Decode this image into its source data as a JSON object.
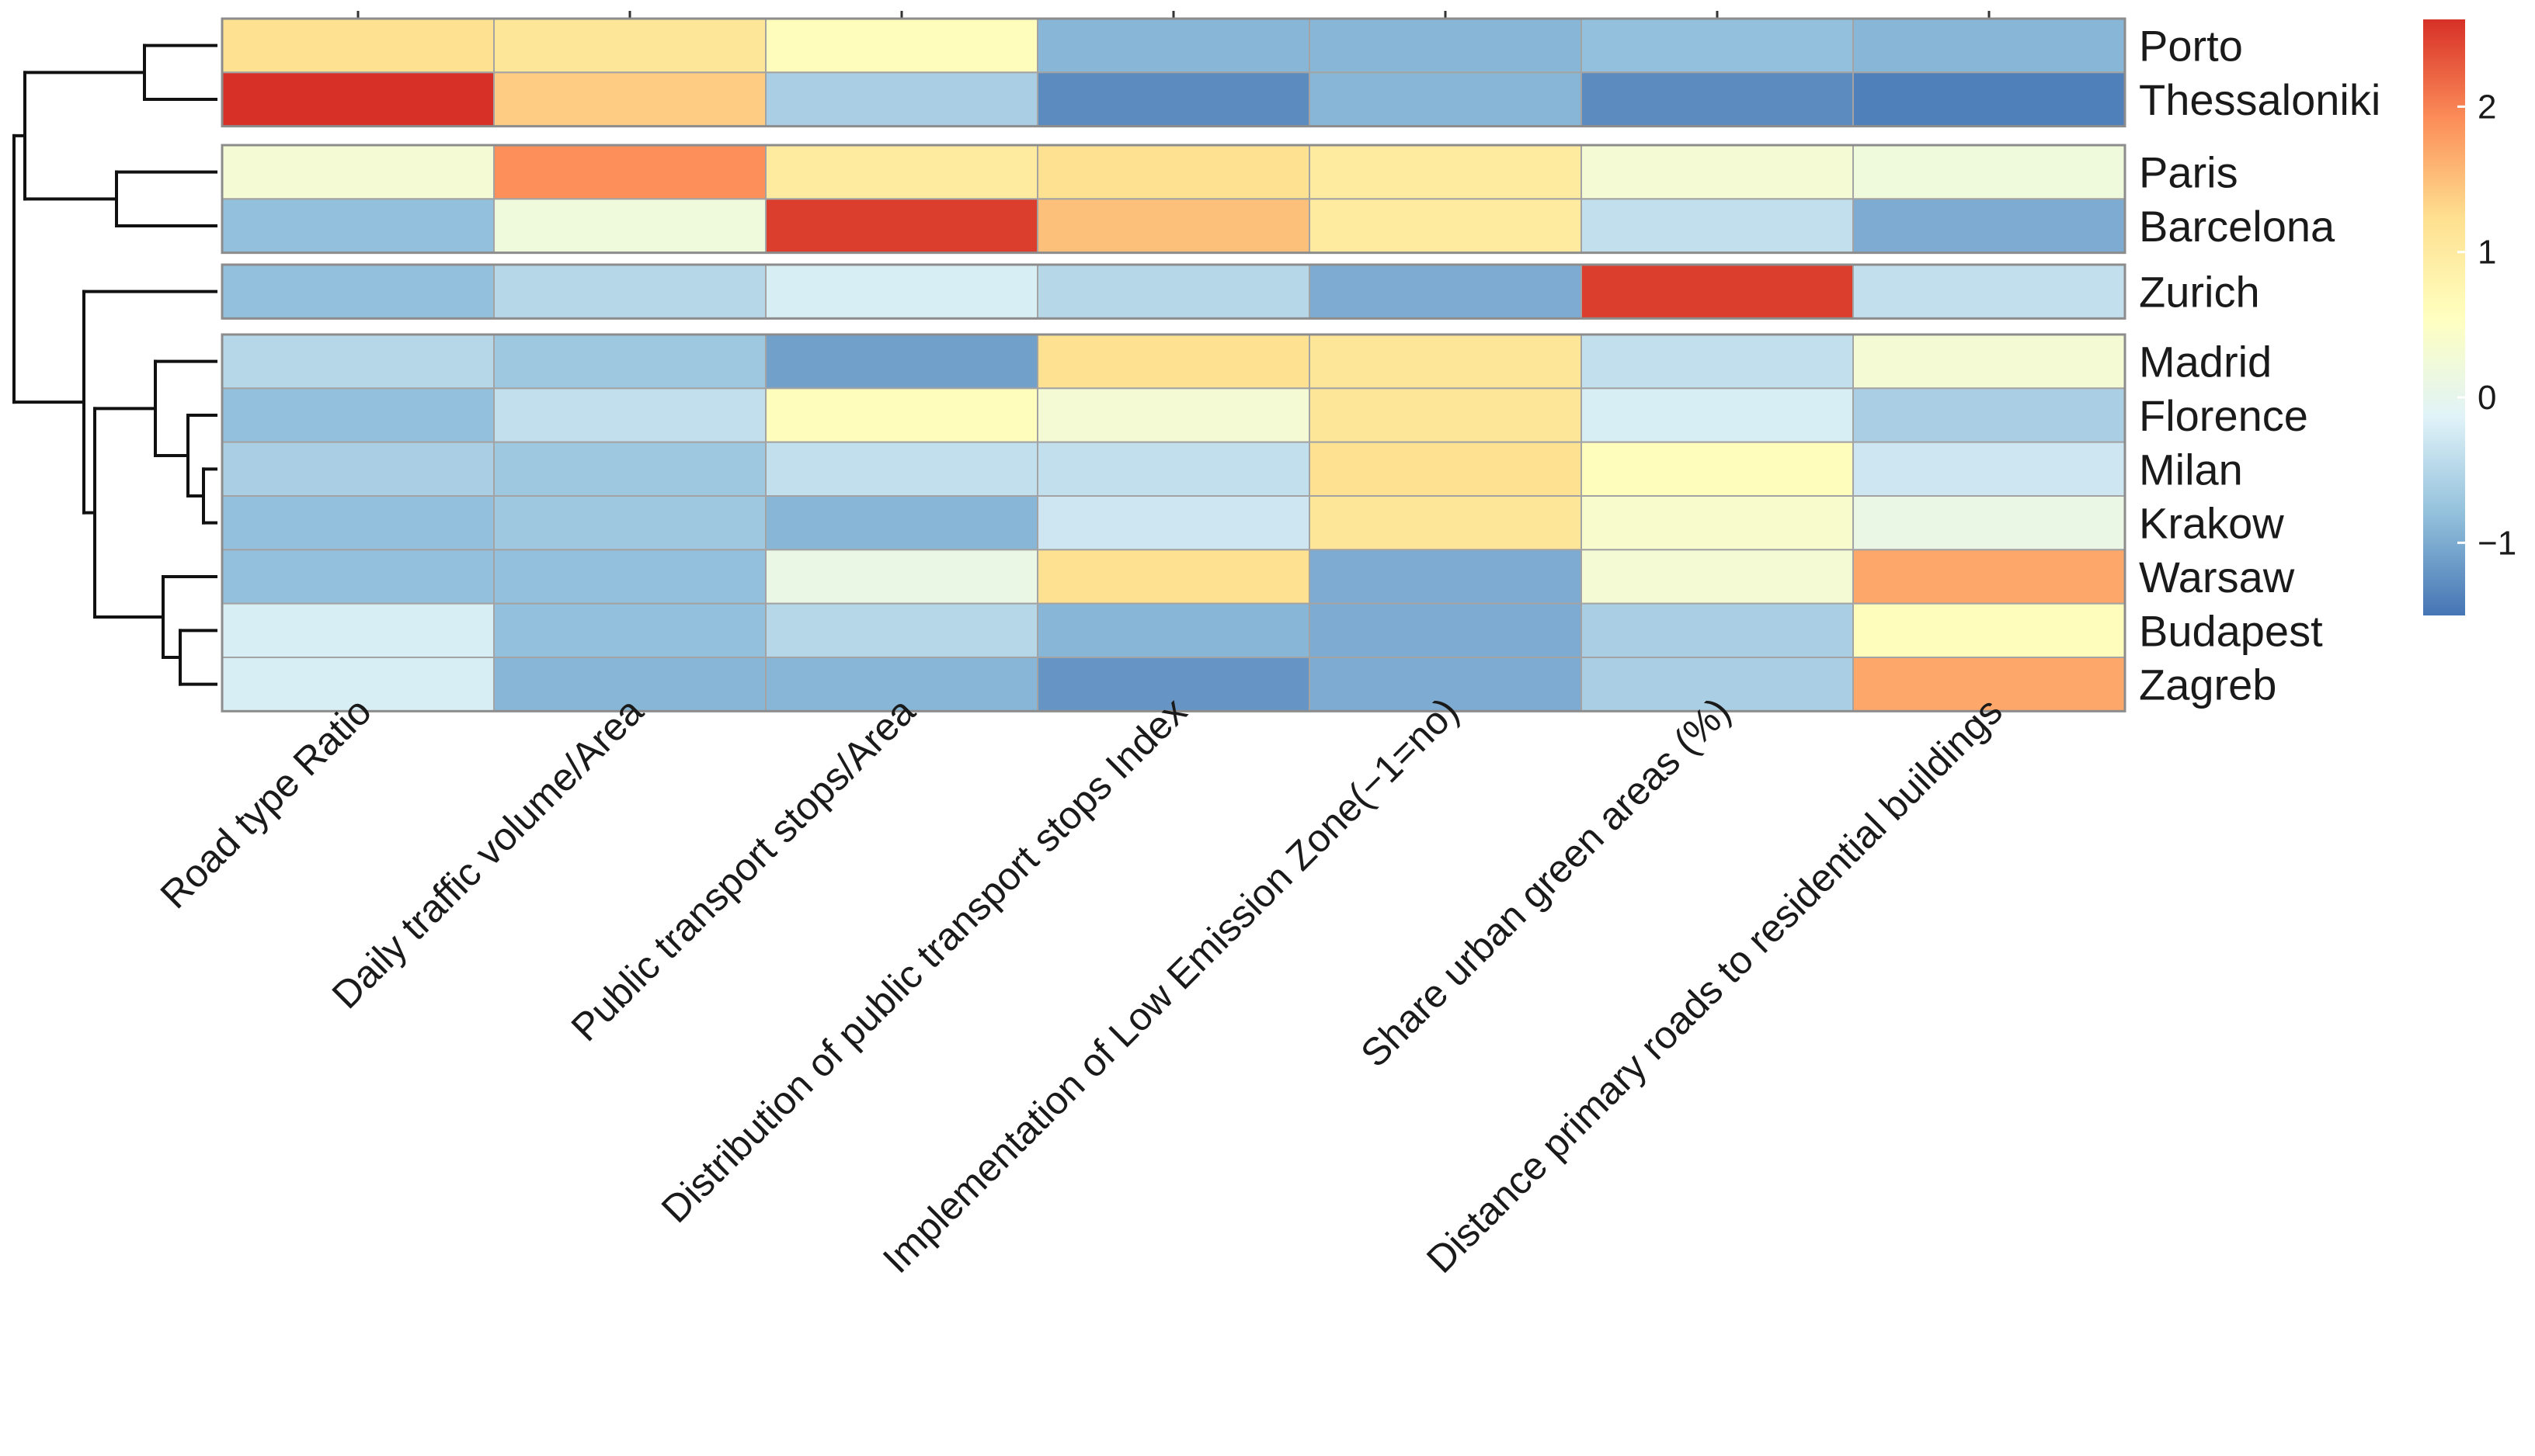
{
  "chart_data": {
    "type": "heatmap",
    "title": "",
    "rows": [
      "Porto",
      "Thessaloniki",
      "Paris",
      "Barcelona",
      "Zurich",
      "Madrid",
      "Florence",
      "Milan",
      "Krakow",
      "Warsaw",
      "Budapest",
      "Zagreb"
    ],
    "row_groups": [
      [
        0,
        1
      ],
      [
        2,
        3
      ],
      [
        4
      ],
      [
        5,
        6,
        7,
        8,
        9,
        10,
        11
      ]
    ],
    "columns": [
      "Road type Ratio",
      "Daily traffic volume/Area",
      "Public transport stops/Area",
      "Distribution of public transport stops Index",
      "Implementation of Low Emission Zone(−1=no)",
      "Share urban green areas (%)",
      "Distance primary roads to residential buildings"
    ],
    "values": [
      [
        1.2,
        1.1,
        0.6,
        -0.9,
        -0.9,
        -0.8,
        -0.9
      ],
      [
        2.6,
        1.4,
        -0.6,
        -1.3,
        -0.9,
        -1.3,
        -1.4
      ],
      [
        0.3,
        1.9,
        1.0,
        1.2,
        1.0,
        0.3,
        0.2
      ],
      [
        -0.8,
        0.2,
        2.5,
        1.5,
        1.0,
        -0.4,
        -1.0
      ],
      [
        -0.8,
        -0.5,
        -0.2,
        -0.5,
        -1.0,
        2.5,
        -0.4
      ],
      [
        -0.5,
        -0.7,
        -1.1,
        1.2,
        1.1,
        -0.4,
        0.3
      ],
      [
        -0.8,
        -0.4,
        0.6,
        0.3,
        1.1,
        -0.2,
        -0.6
      ],
      [
        -0.6,
        -0.7,
        -0.4,
        -0.4,
        1.2,
        0.6,
        -0.3
      ],
      [
        -0.8,
        -0.7,
        -0.9,
        -0.3,
        1.1,
        0.4,
        0.1
      ],
      [
        -0.8,
        -0.8,
        0.1,
        1.2,
        -1.0,
        0.3,
        1.7
      ],
      [
        -0.2,
        -0.8,
        -0.5,
        -0.9,
        -1.0,
        -0.6,
        0.6
      ],
      [
        -0.2,
        -0.9,
        -0.9,
        -1.2,
        -1.0,
        -0.6,
        1.7
      ]
    ],
    "colorbar": {
      "ticks": [
        -1,
        0,
        1,
        2
      ],
      "tick_labels": [
        "−1",
        "0",
        "1",
        "2"
      ],
      "range": [
        -1.5,
        2.6
      ],
      "colors": [
        "#4575b4",
        "#91bfdb",
        "#e0f3f8",
        "#ffffbf",
        "#fee090",
        "#fc8d59",
        "#d73027"
      ]
    },
    "dendrogram": "rows clustered; column ticks shown at top"
  }
}
